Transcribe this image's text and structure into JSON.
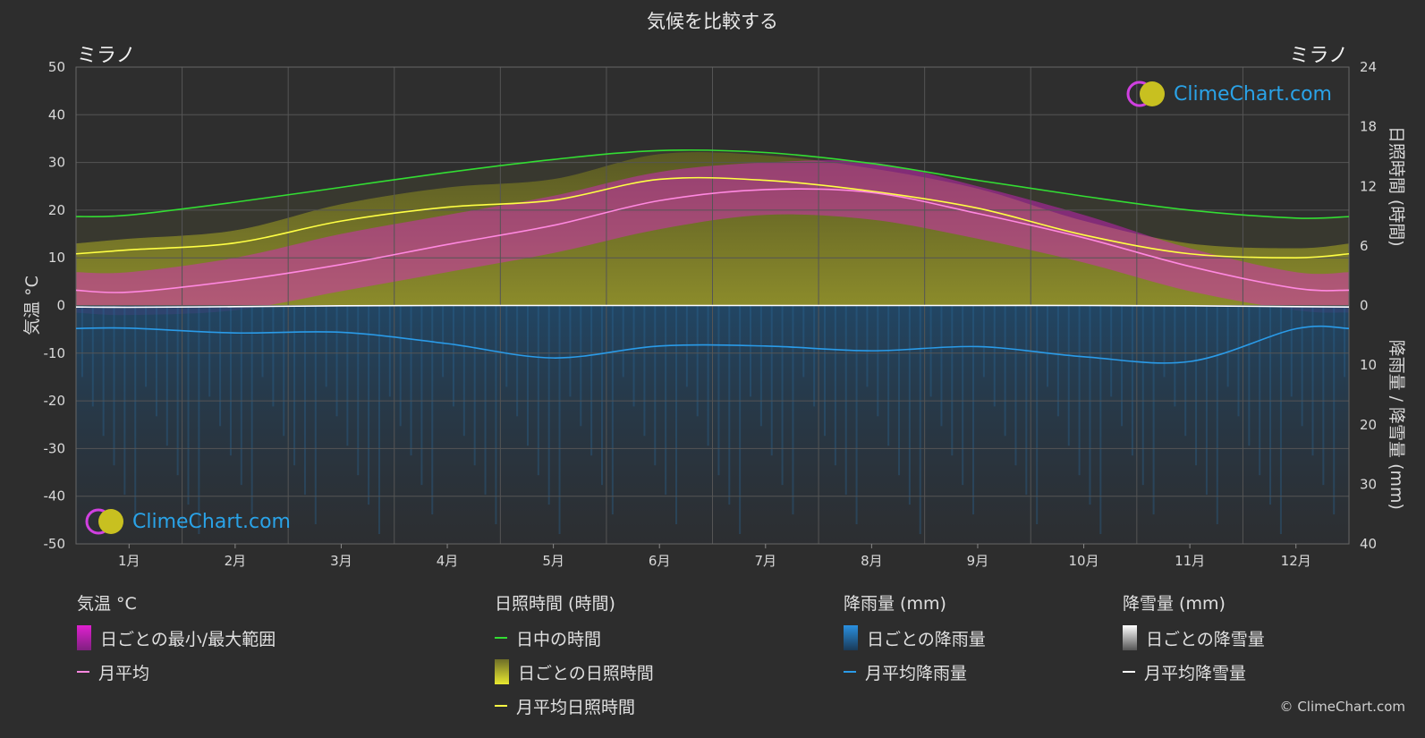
{
  "title": "気候を比較する",
  "location_left": "ミラノ",
  "location_right": "ミラノ",
  "brand": "ClimeChart.com",
  "copyright": "© ClimeChart.com",
  "colors": {
    "background": "#2d2d2d",
    "temp_range": "#e020d0",
    "temp_avg": "#ff88e0",
    "daylight": "#33dd33",
    "sunshine_daily": "#a8a830",
    "sunshine_avg": "#ffff44",
    "rain_daily": "#2a7ab8",
    "rain_avg": "#2a9be8",
    "snow_daily": "#dddddd",
    "snow_avg": "#ffffff"
  },
  "chart_data": {
    "type": "area",
    "categories": [
      "1月",
      "2月",
      "3月",
      "4月",
      "5月",
      "6月",
      "7月",
      "8月",
      "9月",
      "10月",
      "11月",
      "12月"
    ],
    "left_axis": {
      "label": "気温 °C",
      "ylim": [
        -50,
        50
      ],
      "ticks": [
        50,
        40,
        30,
        20,
        10,
        0,
        -10,
        -20,
        -30,
        -40,
        -50
      ]
    },
    "right_axis_top": {
      "label": "日照時間 (時間)",
      "ylim": [
        0,
        24
      ],
      "ticks": [
        24,
        18,
        12,
        6,
        0
      ]
    },
    "right_axis_bottom": {
      "label": "降雨量 / 降雪量 (mm)",
      "ylim": [
        0,
        40
      ],
      "ticks": [
        0,
        10,
        20,
        30,
        40
      ]
    },
    "grid": true,
    "series": [
      {
        "name": "月平均",
        "axis": "temperature",
        "values": [
          2.8,
          5.2,
          8.6,
          12.8,
          16.8,
          22.0,
          24.3,
          23.7,
          19.3,
          14.2,
          8.2,
          3.6
        ]
      },
      {
        "name": "日中の時間",
        "axis": "sunshine",
        "values": [
          9.1,
          10.4,
          11.9,
          13.4,
          14.7,
          15.6,
          15.4,
          14.3,
          12.6,
          11.0,
          9.6,
          8.8
        ]
      },
      {
        "name": "月平均日照時間",
        "axis": "sunshine",
        "values": [
          5.6,
          6.3,
          8.5,
          9.9,
          10.6,
          12.7,
          12.6,
          11.5,
          9.8,
          7.1,
          5.2,
          4.8
        ]
      },
      {
        "name": "月平均降雨量",
        "axis": "precipitation",
        "values": [
          3.8,
          4.6,
          4.5,
          6.4,
          8.8,
          6.8,
          6.8,
          7.6,
          6.9,
          8.6,
          9.4,
          3.9
        ]
      },
      {
        "name": "月平均降雪量",
        "axis": "precipitation",
        "values": [
          0.3,
          0.2,
          0.05,
          0,
          0,
          0,
          0,
          0,
          0,
          0,
          0.05,
          0.2
        ]
      }
    ],
    "daily_temp_range": {
      "name": "日ごとの最小/最大範囲",
      "min": [
        -2,
        -1,
        3,
        7,
        11,
        16,
        19,
        18,
        14,
        9,
        3,
        -1
      ],
      "max": [
        7,
        10,
        15,
        19,
        23,
        28,
        30,
        30,
        25,
        19,
        12,
        7
      ]
    },
    "daily_sunshine": {
      "name": "日ごとの日照時間"
    },
    "daily_rain": {
      "name": "日ごとの降雨量"
    },
    "daily_snow": {
      "name": "日ごとの降雪量"
    }
  },
  "legend": {
    "temperature": {
      "title": "気温 °C",
      "items": [
        "日ごとの最小/最大範囲",
        "月平均"
      ]
    },
    "sunshine": {
      "title": "日照時間 (時間)",
      "items": [
        "日中の時間",
        "日ごとの日照時間",
        "月平均日照時間"
      ]
    },
    "rain": {
      "title": "降雨量 (mm)",
      "items": [
        "日ごとの降雨量",
        "月平均降雨量"
      ]
    },
    "snow": {
      "title": "降雪量 (mm)",
      "items": [
        "日ごとの降雪量",
        "月平均降雪量"
      ]
    }
  }
}
